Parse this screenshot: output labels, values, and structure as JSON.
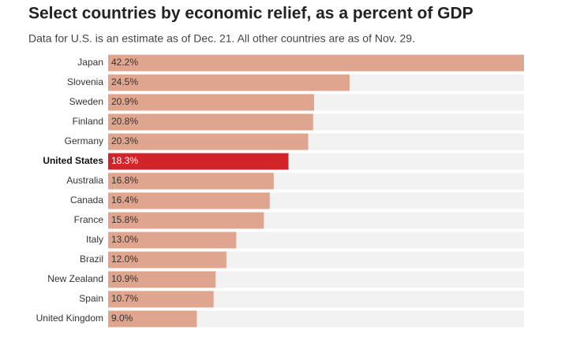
{
  "chart_data": {
    "type": "bar",
    "title": "Select countries by economic relief, as a percent of GDP",
    "subtitle": "Data for U.S. is an estimate as of Dec. 21. All other countries are as of Nov. 29.",
    "categories": [
      "Japan",
      "Slovenia",
      "Sweden",
      "Finland",
      "Germany",
      "United States",
      "Australia",
      "Canada",
      "France",
      "Italy",
      "Brazil",
      "New Zealand",
      "Spain",
      "United Kingdom"
    ],
    "values": [
      42.2,
      24.5,
      20.9,
      20.8,
      20.3,
      18.3,
      16.8,
      16.4,
      15.8,
      13.0,
      12.0,
      10.9,
      10.7,
      9.0
    ],
    "value_labels": [
      "42.2%",
      "24.5%",
      "20.9%",
      "20.8%",
      "20.3%",
      "18.3%",
      "16.8%",
      "16.4%",
      "15.8%",
      "13.0%",
      "12.0%",
      "10.9%",
      "10.7%",
      "9.0%"
    ],
    "colors": [
      "#e0a58e",
      "#e0a58e",
      "#e0a58e",
      "#e0a58e",
      "#e0a58e",
      "#d0232a",
      "#e0a58e",
      "#e0a58e",
      "#e0a58e",
      "#e0a58e",
      "#e0a58e",
      "#e0a58e",
      "#e0a58e",
      "#e0a58e"
    ]
  }
}
